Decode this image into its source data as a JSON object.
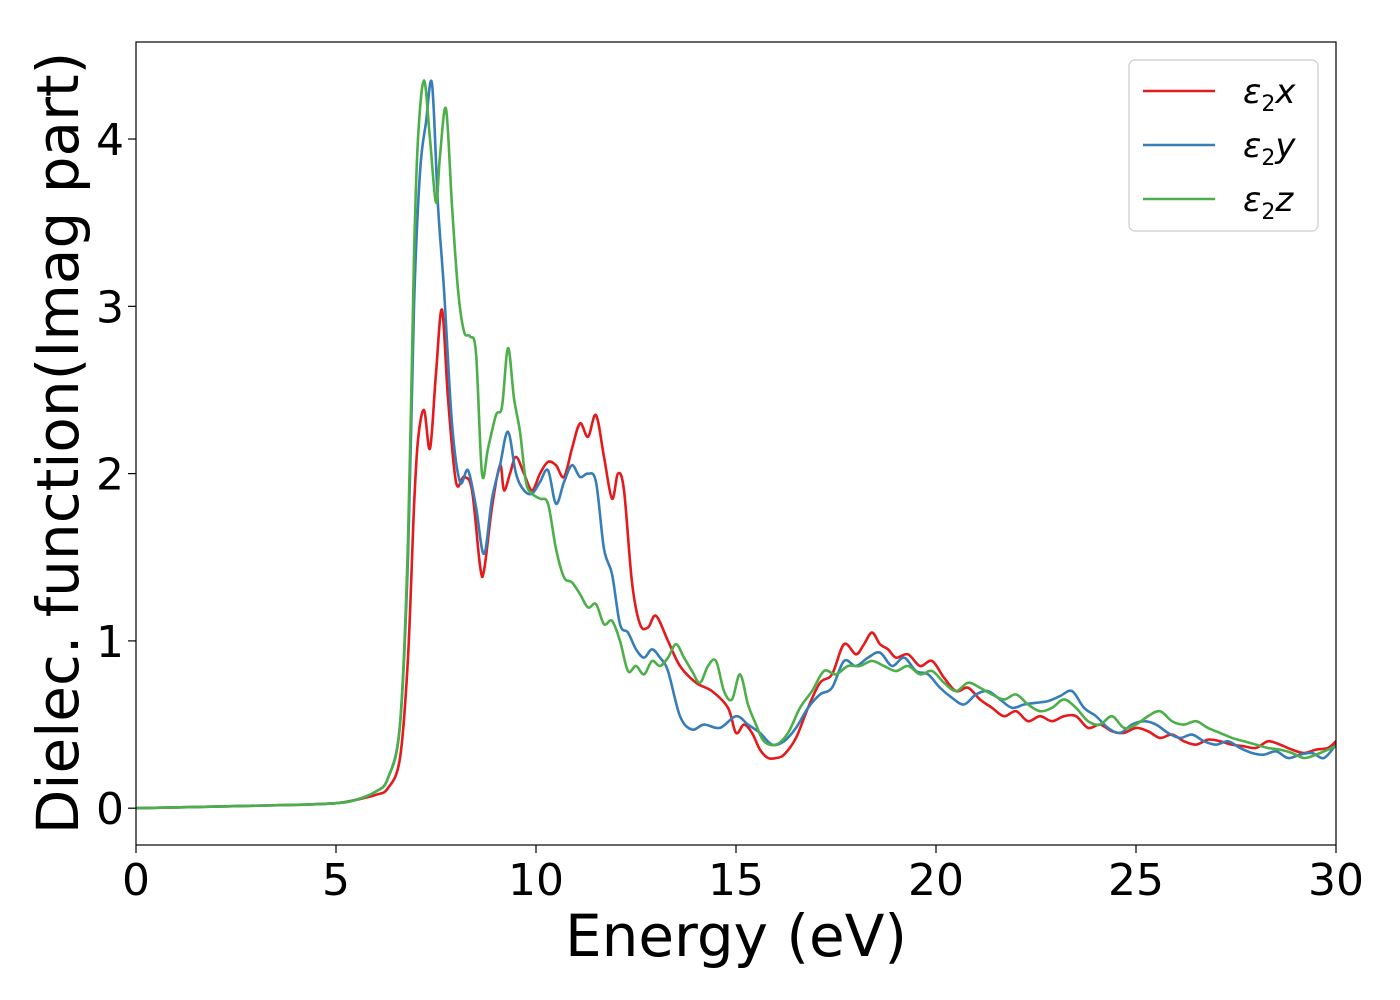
{
  "chart_data": {
    "type": "line",
    "title": "",
    "xlabel": "Energy (eV)",
    "ylabel": "Dielec. function(Imag part)",
    "xlim": [
      0,
      30
    ],
    "ylim": [
      -0.22,
      4.58
    ],
    "xticks": [
      0,
      5,
      10,
      15,
      20,
      25,
      30
    ],
    "yticks": [
      0,
      1,
      2,
      3,
      4
    ],
    "grid": false,
    "legend_position": "top-right",
    "series": [
      {
        "name": "ε₂x",
        "legend_main": "ε",
        "legend_sub": "2",
        "legend_suffix": "x",
        "color": "#e41a1c",
        "x": [
          0,
          2,
          4,
          5,
          5.5,
          6,
          6.3,
          6.6,
          6.8,
          6.95,
          7.05,
          7.2,
          7.35,
          7.5,
          7.65,
          7.8,
          8.0,
          8.2,
          8.4,
          8.6,
          8.7,
          8.9,
          9.1,
          9.2,
          9.35,
          9.5,
          9.7,
          9.9,
          10.1,
          10.3,
          10.5,
          10.7,
          10.9,
          11.1,
          11.3,
          11.5,
          11.7,
          11.9,
          12.05,
          12.2,
          12.4,
          12.6,
          12.8,
          13.0,
          13.3,
          13.6,
          14.0,
          14.4,
          14.8,
          15.0,
          15.2,
          15.4,
          15.6,
          15.8,
          16.0,
          16.2,
          16.5,
          16.8,
          17.1,
          17.4,
          17.7,
          18.0,
          18.2,
          18.4,
          18.6,
          18.8,
          19.0,
          19.3,
          19.6,
          19.9,
          20.2,
          20.5,
          20.8,
          21.1,
          21.4,
          21.7,
          22.0,
          22.3,
          22.6,
          22.9,
          23.2,
          23.5,
          23.8,
          24.1,
          24.4,
          24.7,
          25.0,
          25.3,
          25.6,
          25.9,
          26.2,
          26.5,
          26.8,
          27.1,
          27.4,
          27.7,
          28.0,
          28.3,
          28.6,
          28.9,
          29.2,
          29.5,
          29.8,
          30.0
        ],
        "y": [
          0.0,
          0.01,
          0.02,
          0.03,
          0.05,
          0.08,
          0.12,
          0.3,
          0.9,
          1.8,
          2.2,
          2.38,
          2.15,
          2.6,
          2.98,
          2.45,
          1.95,
          1.98,
          1.9,
          1.45,
          1.42,
          1.8,
          2.05,
          1.9,
          2.0,
          2.1,
          2.0,
          1.9,
          2.0,
          2.07,
          2.05,
          1.98,
          2.15,
          2.3,
          2.22,
          2.35,
          2.1,
          1.85,
          2.0,
          1.9,
          1.35,
          1.1,
          1.08,
          1.15,
          1.0,
          0.85,
          0.75,
          0.7,
          0.6,
          0.45,
          0.5,
          0.45,
          0.35,
          0.3,
          0.3,
          0.32,
          0.42,
          0.6,
          0.75,
          0.8,
          0.98,
          0.92,
          0.98,
          1.05,
          0.98,
          0.95,
          0.9,
          0.92,
          0.85,
          0.88,
          0.78,
          0.7,
          0.72,
          0.65,
          0.6,
          0.55,
          0.58,
          0.52,
          0.55,
          0.52,
          0.55,
          0.55,
          0.48,
          0.5,
          0.46,
          0.45,
          0.48,
          0.46,
          0.42,
          0.44,
          0.4,
          0.38,
          0.41,
          0.4,
          0.38,
          0.37,
          0.36,
          0.4,
          0.38,
          0.35,
          0.33,
          0.35,
          0.36,
          0.4
        ]
      },
      {
        "name": "ε₂y",
        "legend_main": "ε",
        "legend_sub": "2",
        "legend_suffix": "y",
        "color": "#377eb8",
        "x": [
          0,
          2,
          4,
          5,
          5.5,
          6,
          6.3,
          6.6,
          6.8,
          6.95,
          7.1,
          7.25,
          7.4,
          7.55,
          7.7,
          7.9,
          8.1,
          8.3,
          8.5,
          8.7,
          8.9,
          9.1,
          9.3,
          9.5,
          9.7,
          9.9,
          10.1,
          10.3,
          10.5,
          10.7,
          10.9,
          11.1,
          11.3,
          11.5,
          11.7,
          11.9,
          12.1,
          12.3,
          12.5,
          12.7,
          12.9,
          13.1,
          13.3,
          13.6,
          13.9,
          14.2,
          14.6,
          15.0,
          15.3,
          15.6,
          15.9,
          16.2,
          16.5,
          16.8,
          17.1,
          17.4,
          17.7,
          18.0,
          18.3,
          18.6,
          18.9,
          19.2,
          19.5,
          19.8,
          20.1,
          20.4,
          20.7,
          21.0,
          21.3,
          21.6,
          21.9,
          22.2,
          22.5,
          22.8,
          23.1,
          23.4,
          23.7,
          24.0,
          24.3,
          24.6,
          24.9,
          25.2,
          25.5,
          25.8,
          26.1,
          26.4,
          26.7,
          27.0,
          27.3,
          27.6,
          27.9,
          28.2,
          28.5,
          28.8,
          29.1,
          29.4,
          29.7,
          30.0
        ],
        "y": [
          0.0,
          0.01,
          0.02,
          0.03,
          0.05,
          0.1,
          0.18,
          0.5,
          1.5,
          3.0,
          3.8,
          4.1,
          4.33,
          3.6,
          3.1,
          2.3,
          1.95,
          2.02,
          1.8,
          1.52,
          1.85,
          2.05,
          2.25,
          2.0,
          1.9,
          1.88,
          1.95,
          2.02,
          1.82,
          1.95,
          2.05,
          1.98,
          2.0,
          1.95,
          1.55,
          1.4,
          1.1,
          1.05,
          0.95,
          0.9,
          0.95,
          0.9,
          0.82,
          0.55,
          0.47,
          0.5,
          0.48,
          0.55,
          0.5,
          0.45,
          0.38,
          0.4,
          0.48,
          0.6,
          0.68,
          0.72,
          0.88,
          0.85,
          0.9,
          0.93,
          0.85,
          0.9,
          0.82,
          0.8,
          0.72,
          0.66,
          0.62,
          0.68,
          0.7,
          0.65,
          0.6,
          0.62,
          0.63,
          0.64,
          0.67,
          0.7,
          0.6,
          0.55,
          0.48,
          0.45,
          0.5,
          0.52,
          0.5,
          0.45,
          0.42,
          0.44,
          0.4,
          0.38,
          0.4,
          0.36,
          0.33,
          0.32,
          0.34,
          0.3,
          0.32,
          0.33,
          0.3,
          0.38
        ]
      },
      {
        "name": "ε₂z",
        "legend_main": "ε",
        "legend_sub": "2",
        "legend_suffix": "z",
        "color": "#4daf4a",
        "x": [
          0,
          2,
          4,
          5,
          5.5,
          6,
          6.3,
          6.6,
          6.8,
          6.95,
          7.05,
          7.2,
          7.35,
          7.5,
          7.6,
          7.75,
          7.9,
          8.05,
          8.2,
          8.35,
          8.5,
          8.65,
          8.8,
          9.0,
          9.15,
          9.3,
          9.45,
          9.6,
          9.75,
          9.9,
          10.1,
          10.3,
          10.5,
          10.7,
          10.9,
          11.1,
          11.3,
          11.5,
          11.7,
          11.9,
          12.1,
          12.3,
          12.5,
          12.7,
          12.9,
          13.1,
          13.3,
          13.5,
          13.7,
          13.9,
          14.1,
          14.3,
          14.5,
          14.7,
          14.9,
          15.1,
          15.3,
          15.5,
          15.7,
          16.0,
          16.3,
          16.6,
          16.9,
          17.2,
          17.5,
          17.8,
          18.1,
          18.4,
          18.7,
          19.0,
          19.3,
          19.6,
          19.9,
          20.2,
          20.5,
          20.8,
          21.1,
          21.4,
          21.7,
          22.0,
          22.3,
          22.6,
          22.9,
          23.2,
          23.5,
          23.8,
          24.1,
          24.4,
          24.7,
          25.0,
          25.3,
          25.6,
          25.9,
          26.2,
          26.5,
          26.8,
          27.1,
          27.4,
          27.7,
          28.0,
          28.3,
          28.6,
          28.9,
          29.2,
          29.5,
          29.8,
          30.0
        ],
        "y": [
          0.0,
          0.01,
          0.02,
          0.03,
          0.05,
          0.1,
          0.18,
          0.5,
          1.6,
          3.3,
          4.0,
          4.35,
          4.0,
          3.62,
          3.9,
          4.18,
          3.6,
          3.1,
          2.85,
          2.82,
          2.72,
          2.0,
          2.15,
          2.35,
          2.4,
          2.75,
          2.45,
          2.25,
          1.95,
          1.88,
          1.85,
          1.82,
          1.55,
          1.38,
          1.35,
          1.28,
          1.2,
          1.22,
          1.1,
          1.12,
          1.0,
          0.82,
          0.85,
          0.8,
          0.88,
          0.85,
          0.9,
          0.98,
          0.9,
          0.82,
          0.75,
          0.85,
          0.88,
          0.7,
          0.65,
          0.8,
          0.62,
          0.5,
          0.4,
          0.38,
          0.45,
          0.6,
          0.7,
          0.82,
          0.8,
          0.85,
          0.85,
          0.88,
          0.85,
          0.82,
          0.85,
          0.8,
          0.82,
          0.75,
          0.7,
          0.75,
          0.72,
          0.68,
          0.65,
          0.68,
          0.62,
          0.58,
          0.6,
          0.65,
          0.6,
          0.52,
          0.5,
          0.55,
          0.48,
          0.5,
          0.55,
          0.58,
          0.52,
          0.5,
          0.52,
          0.48,
          0.45,
          0.42,
          0.4,
          0.38,
          0.36,
          0.35,
          0.33,
          0.3,
          0.32,
          0.35,
          0.37
        ]
      }
    ]
  }
}
